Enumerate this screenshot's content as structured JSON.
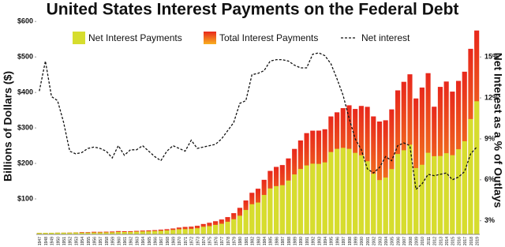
{
  "chart_data": {
    "type": "bar-line",
    "title": "United States Interest Payments on the Federal Debt",
    "y_label": "Billions of Dollars ($)",
    "y2_label": "Net Interest as a % of Outlays",
    "categories": [
      "1947",
      "1948",
      "1949",
      "1950",
      "1951",
      "1952",
      "1953",
      "1954",
      "1955",
      "1956",
      "1957",
      "1958",
      "1959",
      "1960",
      "1961",
      "1962",
      "1963",
      "1964",
      "1965",
      "1966",
      "1967",
      "1968",
      "1969",
      "1970",
      "1971",
      "1972",
      "1973",
      "1974",
      "1975",
      "1976",
      "1977",
      "1978",
      "1979",
      "1980",
      "1981",
      "1982",
      "1983",
      "1984",
      "1985",
      "1986",
      "1987",
      "1988",
      "1989",
      "1990",
      "1991",
      "1992",
      "1993",
      "1994",
      "1995",
      "1996",
      "1997",
      "1998",
      "1999",
      "2000",
      "2001",
      "2002",
      "2003",
      "2004",
      "2005",
      "2006",
      "2007",
      "2008",
      "2009",
      "2010",
      "2011",
      "2012",
      "2013",
      "2014",
      "2015",
      "2016",
      "2017",
      "2018",
      "2019"
    ],
    "series": [
      {
        "name": "Total Interest Payments",
        "kind": "bar",
        "color": "#e8281c",
        "color_bottom": "#f8b020",
        "values": [
          4.2,
          4.3,
          4.5,
          4.8,
          4.8,
          5.1,
          5.7,
          6.4,
          6.4,
          7.3,
          7.2,
          7.6,
          8.1,
          9.3,
          9.0,
          9.1,
          9.9,
          10.7,
          11.3,
          12.0,
          13.4,
          14.6,
          16.6,
          19.3,
          21.0,
          21.8,
          24.2,
          29.3,
          32.7,
          37.1,
          41.9,
          48.7,
          59.8,
          74.8,
          95.5,
          117.2,
          128.7,
          153.8,
          178.9,
          190.2,
          195.4,
          214.1,
          240.9,
          264.7,
          285.4,
          292.3,
          292.5,
          296.3,
          332.4,
          344.0,
          355.8,
          363.8,
          353.5,
          362.0,
          359.5,
          332.5,
          318.1,
          321.6,
          352.3,
          405.9,
          430.0,
          451.2,
          383.1,
          413.9,
          454.4,
          359.8,
          415.7,
          430.8,
          402.4,
          432.6,
          458.5,
          523.0,
          574.6
        ]
      },
      {
        "name": "Net Interest Payments",
        "kind": "bar",
        "color": "#d6dd2e",
        "values": [
          4.2,
          4.3,
          4.5,
          4.8,
          4.7,
          4.7,
          5.2,
          4.8,
          4.9,
          5.1,
          5.4,
          5.6,
          5.8,
          6.9,
          6.7,
          6.9,
          7.7,
          8.2,
          8.6,
          9.4,
          10.3,
          11.1,
          12.7,
          14.4,
          14.8,
          15.5,
          17.3,
          21.4,
          23.2,
          26.7,
          29.9,
          35.5,
          42.6,
          52.5,
          68.8,
          85.0,
          89.8,
          111.1,
          129.5,
          136.0,
          138.6,
          151.8,
          169.0,
          184.3,
          194.4,
          199.3,
          198.7,
          202.9,
          232.1,
          241.1,
          244.0,
          241.1,
          229.8,
          222.9,
          206.2,
          170.9,
          153.1,
          160.2,
          184.0,
          226.6,
          237.1,
          252.8,
          186.9,
          196.2,
          230.0,
          220.4,
          220.9,
          228.9,
          223.2,
          240.0,
          262.6,
          325.0,
          375.2
        ]
      },
      {
        "name": "Net interest",
        "kind": "line",
        "axis": "y2",
        "color": "#111111",
        "values": [
          12.5,
          14.7,
          12.1,
          11.8,
          10.2,
          8.1,
          7.9,
          8.0,
          8.3,
          8.4,
          8.3,
          8.1,
          7.6,
          8.5,
          7.8,
          8.2,
          8.2,
          8.5,
          8.1,
          7.7,
          7.4,
          8.1,
          8.5,
          8.3,
          8.1,
          8.9,
          8.3,
          8.4,
          8.5,
          8.6,
          9.0,
          9.6,
          10.2,
          11.6,
          11.8,
          13.7,
          13.8,
          14.0,
          14.7,
          14.8,
          14.8,
          14.7,
          14.4,
          14.2,
          14.2,
          15.2,
          15.3,
          15.1,
          14.5,
          13.4,
          12.2,
          10.5,
          9.0,
          8.2,
          6.8,
          6.5,
          6.9,
          7.7,
          7.4,
          8.5,
          8.7,
          8.5,
          5.3,
          5.7,
          6.4,
          6.3,
          6.4,
          6.5,
          6.0,
          6.2,
          6.6,
          7.9,
          8.4
        ]
      }
    ],
    "ylim": [
      0,
      625
    ],
    "yticks": [
      {
        "value": 100,
        "label": "$100"
      },
      {
        "value": 200,
        "label": "$200"
      },
      {
        "value": 300,
        "label": "$300"
      },
      {
        "value": 400,
        "label": "$400"
      },
      {
        "value": 500,
        "label": "$500"
      },
      {
        "value": 600,
        "label": "$600"
      }
    ],
    "y2lim": [
      2,
      18.25
    ],
    "y2ticks": [
      {
        "value": 3,
        "label": "3%"
      },
      {
        "value": 6,
        "label": "6%"
      },
      {
        "value": 9,
        "label": "9%"
      },
      {
        "value": 12,
        "label": "12%"
      },
      {
        "value": 15,
        "label": "15%"
      }
    ],
    "grid": false,
    "legend": "top"
  }
}
